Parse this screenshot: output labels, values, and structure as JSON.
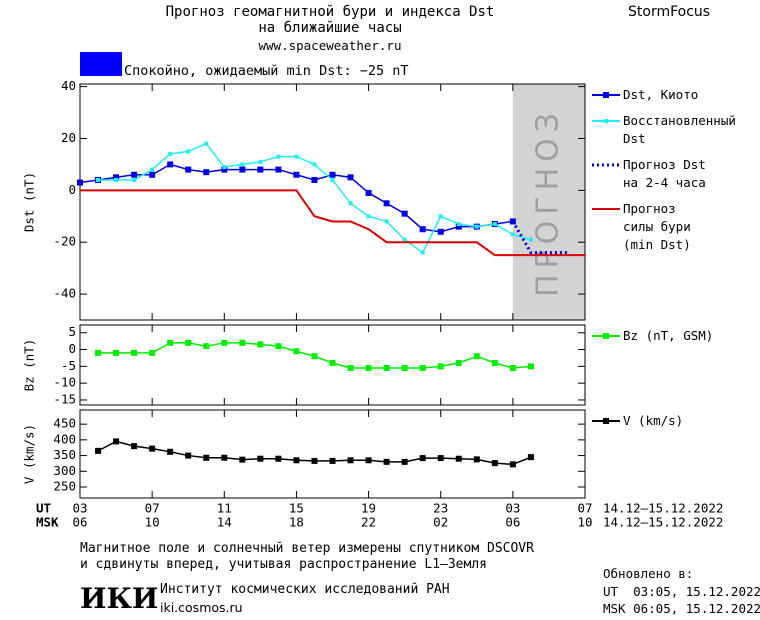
{
  "header": {
    "title": "Прогноз геомагнитной бури и индекса Dst\nна ближайшие часы",
    "url": "www.spaceweather.ru",
    "brand": "StormFocus",
    "status": "Спокойно, ожидаемый min Dst: −25 nT",
    "status_color": "#0000ff"
  },
  "chart_data": [
    {
      "type": "line",
      "ylabel": "Dst (nT)",
      "xlim": [
        0,
        28
      ],
      "ylim": [
        -50,
        41
      ],
      "yticks": [
        40,
        20,
        0,
        -20,
        -40
      ],
      "forecast_region": [
        24,
        28
      ],
      "forecast_label": "прогноз",
      "forecast_color": "#d3d3d3",
      "series": [
        {
          "name": "Dst, Киото",
          "color": "#0000dd",
          "marker": "square",
          "x": [
            0,
            1,
            2,
            3,
            4,
            5,
            6,
            7,
            8,
            9,
            10,
            11,
            12,
            13,
            14,
            15,
            16,
            17,
            18,
            19,
            20,
            21,
            22,
            23,
            24
          ],
          "values": [
            3,
            4,
            5,
            6,
            6,
            10,
            8,
            7,
            8,
            8,
            8,
            8,
            6,
            4,
            6,
            5,
            -1,
            -5,
            -9,
            -15,
            -16,
            -14,
            -14,
            -13,
            -12
          ]
        },
        {
          "name": "Восстановленный\nDst",
          "color": "#22eeee",
          "marker": "square",
          "x": [
            1,
            2,
            3,
            4,
            5,
            6,
            7,
            8,
            9,
            10,
            11,
            12,
            13,
            14,
            15,
            16,
            17,
            18,
            19,
            20,
            21,
            22,
            23,
            24,
            25
          ],
          "values": [
            4,
            4,
            4,
            8,
            14,
            15,
            18,
            9,
            10,
            11,
            13,
            13,
            10,
            4,
            -5,
            -10,
            -12,
            -19,
            -24,
            -10,
            -13,
            -14,
            -13,
            -17,
            -19
          ]
        },
        {
          "name": "Прогноз Dst\nна 2-4 часа",
          "color": "#0000dd",
          "dash": "dotted",
          "x": [
            24,
            25,
            26,
            27
          ],
          "values": [
            -12,
            -24,
            -24,
            -24
          ]
        },
        {
          "name": "Прогноз\nсилы бури\n(min Dst)",
          "color": "#dd0000",
          "x": [
            0,
            12,
            13,
            14,
            15,
            16,
            17,
            22,
            23,
            28
          ],
          "values": [
            0,
            0,
            -10,
            -12,
            -12,
            -15,
            -20,
            -20,
            -25,
            -25
          ]
        }
      ]
    },
    {
      "type": "line",
      "ylabel": "Bz (nT)",
      "xlim": [
        0,
        28
      ],
      "ylim": [
        -16.5,
        7.3
      ],
      "yticks": [
        5,
        0,
        -5,
        -10,
        -15
      ],
      "series": [
        {
          "name": "Bz (nT, GSM)",
          "color": "#00ee00",
          "marker": "square",
          "x": [
            1,
            2,
            3,
            4,
            5,
            6,
            7,
            8,
            9,
            10,
            11,
            12,
            13,
            14,
            15,
            16,
            17,
            18,
            19,
            20,
            21,
            22,
            23,
            24,
            25
          ],
          "values": [
            -1,
            -1,
            -1,
            -1,
            2,
            2,
            1,
            2,
            2,
            1.5,
            1,
            -0.5,
            -2,
            -4,
            -5.5,
            -5.5,
            -5.5,
            -5.5,
            -5.5,
            -5,
            -4,
            -2,
            -4,
            -5.5,
            -5
          ]
        }
      ]
    },
    {
      "type": "line",
      "ylabel": "V (km/s)",
      "xlim": [
        0,
        28
      ],
      "ylim": [
        215,
        495
      ],
      "yticks": [
        450,
        400,
        350,
        300,
        250
      ],
      "series": [
        {
          "name": "V (km/s)",
          "color": "#000000",
          "marker": "square",
          "x": [
            1,
            2,
            3,
            4,
            5,
            6,
            7,
            8,
            9,
            10,
            11,
            12,
            13,
            14,
            15,
            16,
            17,
            18,
            19,
            20,
            21,
            22,
            23,
            24,
            25
          ],
          "values": [
            365,
            395,
            380,
            372,
            362,
            350,
            343,
            343,
            337,
            340,
            340,
            335,
            333,
            333,
            335,
            335,
            330,
            330,
            342,
            342,
            340,
            338,
            326,
            322,
            345
          ]
        }
      ],
      "xtick_row_label": "UT",
      "xtick_dates": "14.12–15.12.2022",
      "xticks": [
        {
          "value": 0,
          "label": "03"
        },
        {
          "value": 4,
          "label": "07"
        },
        {
          "value": 8,
          "label": "11"
        },
        {
          "value": 12,
          "label": "15"
        },
        {
          "value": 16,
          "label": "19"
        },
        {
          "value": 20,
          "label": "23"
        },
        {
          "value": 24,
          "label": "03"
        },
        {
          "value": 28,
          "label": "07"
        }
      ],
      "xtick2_row_label": "MSK",
      "xtick2_dates": "14.12–15.12.2022",
      "xticks2": [
        {
          "value": 0,
          "label": "06"
        },
        {
          "value": 4,
          "label": "10"
        },
        {
          "value": 8,
          "label": "14"
        },
        {
          "value": 12,
          "label": "18"
        },
        {
          "value": 16,
          "label": "22"
        },
        {
          "value": 20,
          "label": "02"
        },
        {
          "value": 24,
          "label": "06"
        },
        {
          "value": 28,
          "label": "10"
        }
      ]
    }
  ],
  "footer": {
    "note": "Магнитное поле и солнечный ветер измерены спутником DSCOVR\nи сдвинуты вперед, учитывая распространение L1–Земля",
    "logo": "ИКИ",
    "institute": "Институт космических исследований РАН",
    "site": "iki.cosmos.ru",
    "updated": "Обновлено в:",
    "updated_ut": "UT  03:05, 15.12.2022",
    "updated_msk": "MSK 06:05, 15.12.2022"
  }
}
